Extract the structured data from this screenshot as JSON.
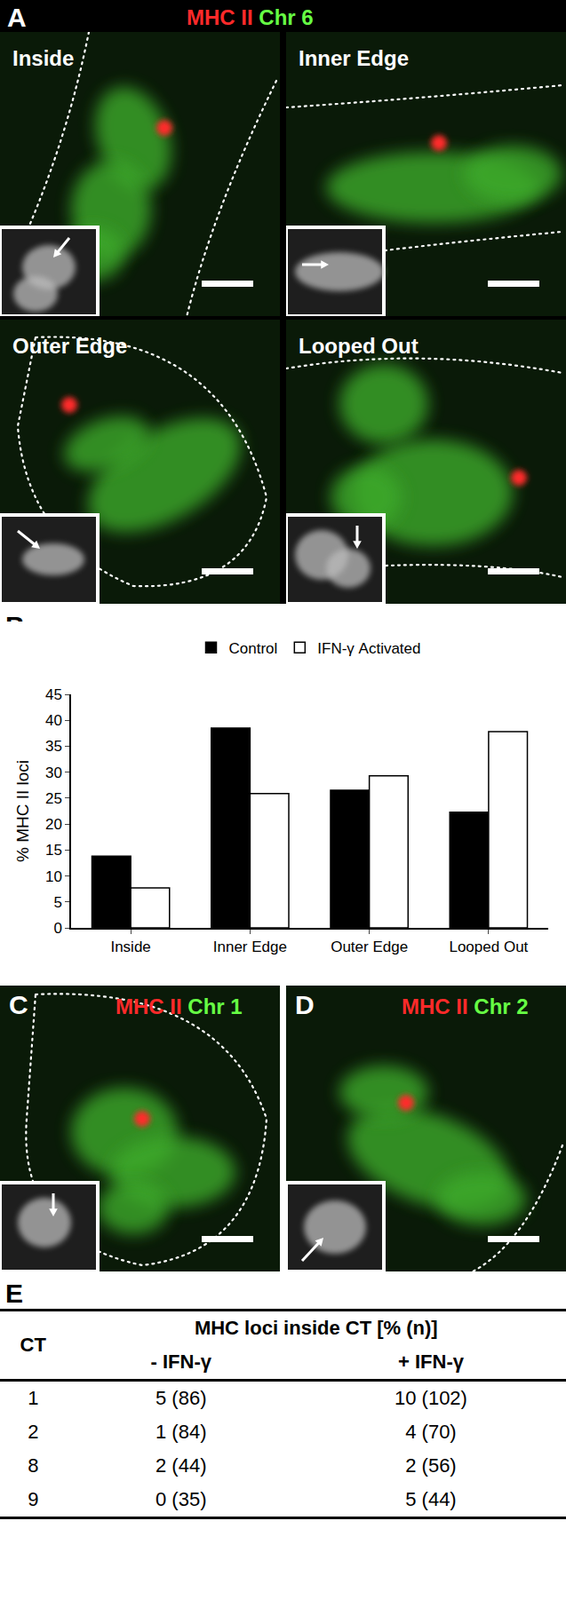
{
  "panels": {
    "A": {
      "label": "A",
      "legend": [
        {
          "text": "MHC II",
          "color": "#ff2a2a"
        },
        {
          "text": "Chr 6",
          "color": "#66ff44"
        }
      ],
      "images": [
        "Inside",
        "Inner Edge",
        "Outer Edge",
        "Looped Out"
      ]
    },
    "C": {
      "label": "C",
      "legend": [
        {
          "text": "MHC II",
          "color": "#ff2a2a"
        },
        {
          "text": "Chr 1",
          "color": "#66ff44"
        }
      ]
    },
    "D": {
      "label": "D",
      "legend": [
        {
          "text": "MHC II",
          "color": "#ff2a2a"
        },
        {
          "text": "Chr 2",
          "color": "#66ff44"
        }
      ]
    }
  },
  "chart_data": {
    "panel_label": "B",
    "type": "bar",
    "y_label": "% MHC II loci",
    "categories": [
      "Inside",
      "Inner Edge",
      "Outer Edge",
      "Looped Out"
    ],
    "series": [
      {
        "name": "Control",
        "color": "#000000",
        "values": [
          13.8,
          38.5,
          26.5,
          22.3
        ]
      },
      {
        "name": "IFN-γ Activated",
        "color": "#ffffff",
        "values": [
          7.7,
          25.9,
          29.3,
          37.8
        ]
      }
    ],
    "ylim": [
      0,
      45
    ],
    "yticks": [
      0,
      5,
      10,
      15,
      20,
      25,
      30,
      35,
      40,
      45
    ],
    "grid": false,
    "legend": "top"
  },
  "table": {
    "label": "E",
    "header": [
      "CT",
      "MHC loci inside CT [% (n)]"
    ],
    "subheader": [
      "- IFN-γ",
      "+ IFN-γ"
    ],
    "rows": [
      [
        "1",
        "5 (86)",
        "10 (102)"
      ],
      [
        "2",
        "1 (84)",
        "4 (70)"
      ],
      [
        "8",
        "2 (44)",
        "2 (56)"
      ],
      [
        "9",
        "0 (35)",
        "5 (44)"
      ]
    ]
  }
}
